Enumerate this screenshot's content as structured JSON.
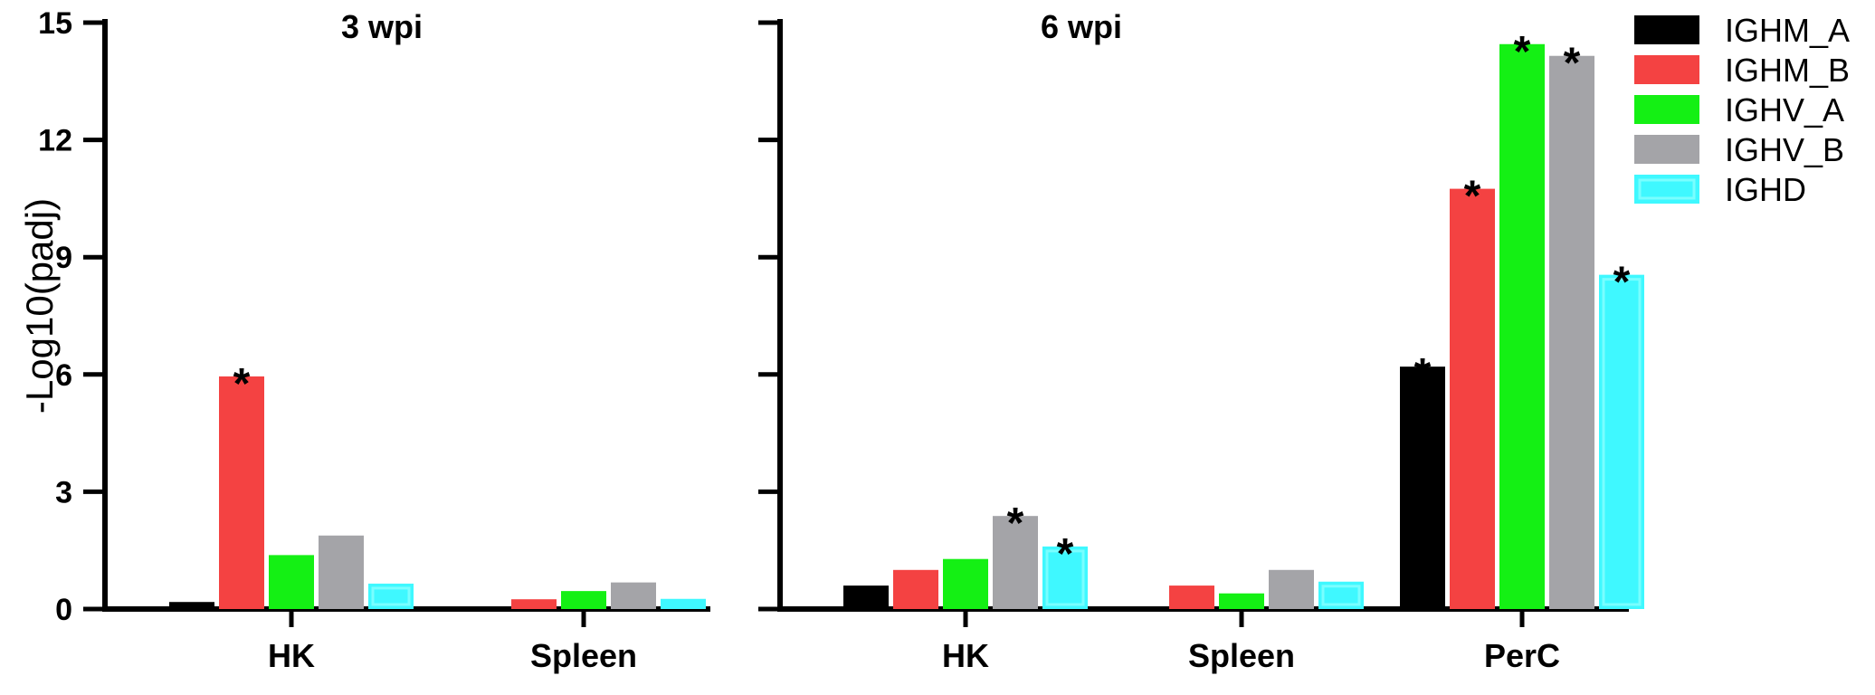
{
  "chart_data": {
    "type": "bar",
    "ylabel": "-Log10(padj)",
    "ylim": [
      0,
      15
    ],
    "yticks": [
      "0",
      "3",
      "6",
      "9",
      "12",
      "15"
    ],
    "series_names": [
      "IGHM_A",
      "IGHM_B",
      "IGHV_A",
      "IGHV_B",
      "IGHD"
    ],
    "colors": [
      "#000000",
      "#f44242",
      "#14f014",
      "#a4a4a8",
      "#3ff8ff"
    ],
    "legend_position": "top-right",
    "grid": false,
    "panels": [
      {
        "title": "3 wpi",
        "categories": [
          "HK",
          "Spleen"
        ],
        "series": [
          {
            "name": "IGHM_A",
            "values": [
              0.18,
              0.06
            ]
          },
          {
            "name": "IGHM_B",
            "values": [
              5.95,
              0.25
            ]
          },
          {
            "name": "IGHV_A",
            "values": [
              1.38,
              0.46
            ]
          },
          {
            "name": "IGHV_B",
            "values": [
              1.88,
              0.68
            ]
          },
          {
            "name": "IGHD",
            "values": [
              0.65,
              0.26
            ]
          }
        ],
        "significance": [
          {
            "category": "HK",
            "series": "IGHM_B",
            "mark": "*"
          }
        ]
      },
      {
        "title": "6 wpi",
        "categories": [
          "HK",
          "Spleen",
          "PerC"
        ],
        "series": [
          {
            "name": "IGHM_A",
            "values": [
              0.6,
              0.06,
              6.2
            ]
          },
          {
            "name": "IGHM_B",
            "values": [
              1.0,
              0.6,
              10.75
            ]
          },
          {
            "name": "IGHV_A",
            "values": [
              1.28,
              0.4,
              14.45
            ]
          },
          {
            "name": "IGHV_B",
            "values": [
              2.38,
              1.0,
              14.15
            ]
          },
          {
            "name": "IGHD",
            "values": [
              1.6,
              0.7,
              8.55
            ]
          }
        ],
        "significance": [
          {
            "category": "HK",
            "series": "IGHV_B",
            "mark": "*"
          },
          {
            "category": "HK",
            "series": "IGHD",
            "mark": "*"
          },
          {
            "category": "PerC",
            "series": "IGHM_A",
            "mark": "*"
          },
          {
            "category": "PerC",
            "series": "IGHM_B",
            "mark": "*"
          },
          {
            "category": "PerC",
            "series": "IGHV_A",
            "mark": "*"
          },
          {
            "category": "PerC",
            "series": "IGHV_B",
            "mark": "*"
          },
          {
            "category": "PerC",
            "series": "IGHD",
            "mark": "*"
          }
        ]
      }
    ]
  }
}
